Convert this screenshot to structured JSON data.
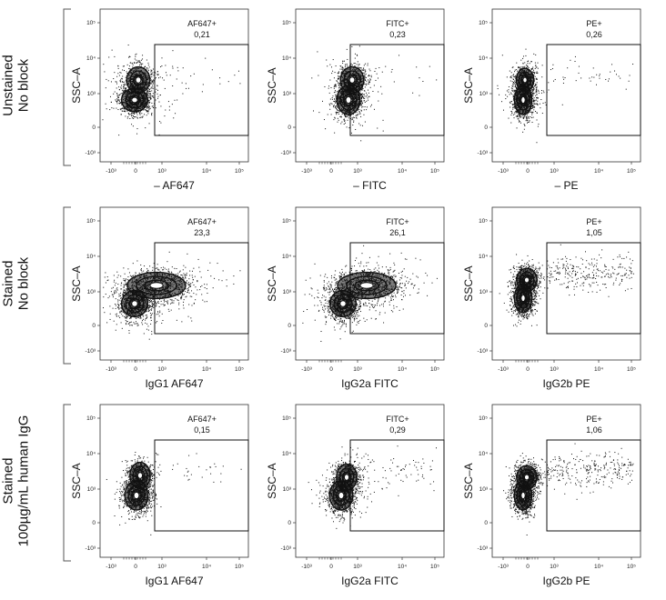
{
  "chart_data": [
    {
      "type": "scatter",
      "row_label": [
        "Unstained",
        "No block"
      ],
      "ylabel": "SSC–A",
      "xlabel": "– AF647",
      "gate": {
        "name": "AF647+",
        "value": "0,21"
      },
      "x_ticks": [
        "-10³",
        "0",
        "10³",
        "10⁴",
        "10⁵"
      ],
      "y_ticks": [
        "10⁵",
        "10⁴",
        "10³",
        "0",
        "-10³"
      ]
    },
    {
      "type": "scatter",
      "row_label": [
        "Unstained",
        "No block"
      ],
      "ylabel": "SSC–A",
      "xlabel": "– FITC",
      "gate": {
        "name": "FITC+",
        "value": "0,23"
      },
      "x_ticks": [
        "-10³",
        "0",
        "10³",
        "10⁴",
        "10⁵"
      ],
      "y_ticks": [
        "10⁵",
        "10⁴",
        "10³",
        "0",
        "-10³"
      ]
    },
    {
      "type": "scatter",
      "row_label": [
        "Unstained",
        "No block"
      ],
      "ylabel": "SSC–A",
      "xlabel": "– PE",
      "gate": {
        "name": "PE+",
        "value": "0,26"
      },
      "x_ticks": [
        "-10³",
        "0",
        "10³",
        "10⁴",
        "10⁵"
      ],
      "y_ticks": [
        "10⁵",
        "10⁴",
        "10³",
        "0",
        "-10³"
      ]
    },
    {
      "type": "scatter",
      "row_label": [
        "Stained",
        "No block"
      ],
      "ylabel": "SSC–A",
      "xlabel": "IgG1 AF647",
      "gate": {
        "name": "AF647+",
        "value": "23,3"
      },
      "x_ticks": [
        "-10³",
        "0",
        "10³",
        "10⁴",
        "10⁵"
      ],
      "y_ticks": [
        "10⁵",
        "10⁴",
        "10³",
        "0",
        "-10³"
      ]
    },
    {
      "type": "scatter",
      "row_label": [
        "Stained",
        "No block"
      ],
      "ylabel": "SSC–A",
      "xlabel": "IgG2a FITC",
      "gate": {
        "name": "FITC+",
        "value": "26,1"
      },
      "x_ticks": [
        "-10³",
        "0",
        "10³",
        "10⁴",
        "10⁵"
      ],
      "y_ticks": [
        "10⁵",
        "10⁴",
        "10³",
        "0",
        "-10³"
      ]
    },
    {
      "type": "scatter",
      "row_label": [
        "Stained",
        "No block"
      ],
      "ylabel": "SSC–A",
      "xlabel": "IgG2b PE",
      "gate": {
        "name": "PE+",
        "value": "1,05"
      },
      "x_ticks": [
        "-10³",
        "0",
        "10³",
        "10⁴",
        "10⁵"
      ],
      "y_ticks": [
        "10⁵",
        "10⁴",
        "10³",
        "0",
        "-10³"
      ]
    },
    {
      "type": "scatter",
      "row_label": [
        "Stained",
        "100µg/mL human IgG"
      ],
      "ylabel": "SSC–A",
      "xlabel": "IgG1 AF647",
      "gate": {
        "name": "AF647+",
        "value": "0,15"
      },
      "x_ticks": [
        "-10³",
        "0",
        "10³",
        "10⁴",
        "10⁵"
      ],
      "y_ticks": [
        "10⁵",
        "10⁴",
        "10³",
        "0",
        "-10³"
      ]
    },
    {
      "type": "scatter",
      "row_label": [
        "Stained",
        "100µg/mL human IgG"
      ],
      "ylabel": "SSC–A",
      "xlabel": "IgG2a FITC",
      "gate": {
        "name": "FITC+",
        "value": "0,29"
      },
      "x_ticks": [
        "-10³",
        "0",
        "10³",
        "10⁴",
        "10⁵"
      ],
      "y_ticks": [
        "10⁵",
        "10⁴",
        "10³",
        "0",
        "-10³"
      ]
    },
    {
      "type": "scatter",
      "row_label": [
        "Stained",
        "100µg/mL human IgG"
      ],
      "ylabel": "SSC–A",
      "xlabel": "IgG2b PE",
      "gate": {
        "name": "PE+",
        "value": "1,06"
      },
      "x_ticks": [
        "-10³",
        "0",
        "10³",
        "10⁴",
        "10⁵"
      ],
      "y_ticks": [
        "10⁵",
        "10⁴",
        "10³",
        "0",
        "-10³"
      ]
    }
  ],
  "colors": {
    "ink": "#111111"
  }
}
